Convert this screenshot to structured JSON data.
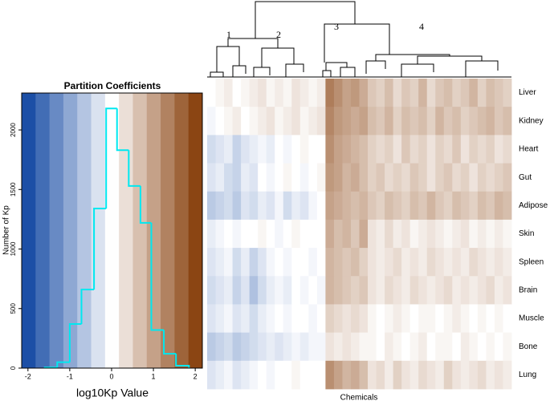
{
  "chart_data": [
    {
      "type": "histogram",
      "title": "Partition Coefficients",
      "xlabel": "log10Kp Value",
      "ylabel": "Number of Kp",
      "bins": [
        -1.6,
        -1.3,
        -1.0,
        -0.72,
        -0.42,
        -0.13,
        0.13,
        0.41,
        0.69,
        0.95,
        1.25,
        1.54,
        1.85
      ],
      "counts": [
        5,
        50,
        370,
        660,
        1340,
        2180,
        1830,
        1530,
        1220,
        320,
        120,
        20
      ],
      "color": "#00e8f0",
      "xlim": [
        -2.15,
        2.17
      ],
      "xticks": [
        -2,
        -1,
        0,
        1,
        2
      ],
      "ylim": [
        0,
        2310
      ],
      "yticks": [
        0,
        500,
        1000,
        1500,
        2000
      ]
    },
    {
      "type": "heatmap",
      "xlabel": "Chemicals",
      "cluster_labels": [
        "1",
        "2",
        "3",
        "4"
      ],
      "colorscale": {
        "low": "#1a4ea5",
        "mid": "#ffffff",
        "high": "#8b4513",
        "range": [
          -2,
          2
        ]
      },
      "rows": [
        {
          "name": "Liver",
          "values": [
            0,
            0.1,
            0.2,
            0,
            0.1,
            0.2,
            0.3,
            0.1,
            0.2,
            0.1,
            0.3,
            0.2,
            0.1,
            0.2,
            1.4,
            1.2,
            1.0,
            1.1,
            0.9,
            0.6,
            0.5,
            0.7,
            0.4,
            0.6,
            0.5,
            0.8,
            0.4,
            0.6,
            0.7,
            0.5,
            0.6,
            0.8,
            0.5,
            0.7,
            0.6,
            0.5
          ]
        },
        {
          "name": "Kidney",
          "values": [
            -0.1,
            0,
            0.1,
            0.2,
            0,
            0.1,
            0.2,
            0.3,
            0.1,
            0.2,
            0.3,
            0.1,
            0.2,
            0.3,
            1.3,
            1.1,
            1.0,
            0.9,
            1.0,
            0.7,
            0.6,
            0.8,
            0.5,
            0.7,
            0.6,
            0.7,
            0.5,
            0.8,
            0.6,
            0.7,
            0.5,
            0.6,
            0.7,
            0.8,
            0.6,
            0.7
          ]
        },
        {
          "name": "Heart",
          "values": [
            -0.4,
            -0.3,
            -0.2,
            -0.5,
            -0.3,
            -0.2,
            -0.1,
            -0.2,
            0,
            -0.1,
            0,
            0.1,
            0,
            0,
            1.2,
            1.0,
            0.9,
            0.8,
            0.7,
            0.5,
            0.4,
            0.5,
            0.3,
            0.6,
            0.4,
            0.5,
            0.3,
            0.5,
            0.4,
            0.6,
            0.3,
            0.5,
            0.4,
            0.5,
            0.3,
            0.4
          ]
        },
        {
          "name": "Gut",
          "values": [
            -0.3,
            -0.2,
            -0.4,
            -0.5,
            -0.2,
            -0.3,
            0,
            -0.1,
            0,
            0.1,
            0,
            -0.1,
            0,
            0.1,
            1.1,
            1.0,
            0.8,
            0.9,
            0.7,
            0.5,
            0.6,
            0.4,
            0.5,
            0.4,
            0.6,
            0.5,
            0.3,
            0.5,
            0.6,
            0.4,
            0.5,
            0.3,
            0.5,
            0.4,
            0.5,
            0.6
          ]
        },
        {
          "name": "Adipose",
          "values": [
            -0.6,
            -0.5,
            -0.4,
            -0.6,
            -0.3,
            -0.4,
            -0.2,
            -0.3,
            -0.1,
            -0.4,
            -0.2,
            -0.3,
            -0.1,
            0,
            1.0,
            0.9,
            0.8,
            0.7,
            0.8,
            0.6,
            0.5,
            0.7,
            0.6,
            0.5,
            0.7,
            0.6,
            0.8,
            0.6,
            0.5,
            0.7,
            0.6,
            0.5,
            0.7,
            0.6,
            0.8,
            0.7
          ]
        },
        {
          "name": "Skin",
          "values": [
            -0.2,
            -0.1,
            0,
            -0.1,
            0,
            0,
            0.1,
            0,
            -0.1,
            0,
            0.1,
            0,
            0,
            0,
            0.9,
            0.7,
            0.8,
            0.6,
            0.9,
            0.3,
            0.2,
            0.4,
            0.2,
            0.3,
            0.1,
            0.2,
            0.3,
            0.2,
            0.1,
            0.2,
            0.3,
            0.1,
            0.2,
            0.1,
            0.2,
            0.1
          ]
        },
        {
          "name": "Spleen",
          "values": [
            -0.3,
            -0.2,
            -0.1,
            -0.4,
            -0.2,
            -0.5,
            -0.3,
            -0.1,
            0,
            -0.1,
            0,
            0,
            -0.1,
            0,
            0.8,
            0.7,
            0.6,
            0.7,
            0.5,
            0.3,
            0.2,
            0.3,
            0.4,
            0.2,
            0.3,
            0.2,
            0.4,
            0.3,
            0.2,
            0.3,
            0.2,
            0.4,
            0.3,
            0.2,
            0.3,
            0.2
          ]
        },
        {
          "name": "Brain",
          "values": [
            -0.4,
            -0.3,
            -0.2,
            -0.5,
            -0.3,
            -0.7,
            -0.4,
            -0.2,
            -0.1,
            -0.2,
            0,
            -0.1,
            0,
            -0.1,
            0.8,
            0.7,
            0.6,
            0.5,
            0.6,
            0.3,
            0.2,
            0.4,
            0.3,
            0.2,
            0.4,
            0.3,
            0.2,
            0.3,
            0.4,
            0.2,
            0.3,
            0.2,
            0.3,
            0.4,
            0.2,
            0.3
          ]
        },
        {
          "name": "Muscle",
          "values": [
            -0.3,
            -0.2,
            -0.1,
            -0.3,
            -0.2,
            -0.4,
            -0.2,
            -0.1,
            0,
            -0.1,
            0,
            0,
            -0.1,
            0,
            0.5,
            0.4,
            0.3,
            0.4,
            0.3,
            0.1,
            0,
            0.1,
            0.2,
            0.1,
            0,
            0.1,
            0.1,
            0,
            0.1,
            0.2,
            0.1,
            0,
            0.1,
            0,
            0.1,
            0
          ]
        },
        {
          "name": "Bone",
          "values": [
            -0.6,
            -0.5,
            -0.4,
            -0.6,
            -0.5,
            -0.4,
            -0.3,
            -0.2,
            -0.3,
            -0.2,
            -0.1,
            -0.2,
            -0.1,
            -0.1,
            0.3,
            0.2,
            0.3,
            0.2,
            0.1,
            0.1,
            0,
            0.2,
            0.1,
            0,
            0.1,
            0.2,
            0,
            0.1,
            0.1,
            0,
            0.2,
            0.1,
            0,
            0.1,
            0,
            0.1
          ]
        },
        {
          "name": "Lung",
          "values": [
            -0.3,
            -0.2,
            -0.1,
            -0.3,
            -0.2,
            -0.1,
            0,
            -0.1,
            0,
            0,
            0.1,
            0,
            0,
            0,
            1.2,
            1.0,
            0.8,
            0.9,
            0.7,
            0.3,
            0.4,
            0.2,
            0.5,
            0.3,
            0.2,
            0.4,
            0.3,
            0.2,
            0.5,
            0.3,
            0.2,
            0.3,
            0.4,
            0.2,
            0.3,
            0.2
          ]
        }
      ]
    }
  ]
}
